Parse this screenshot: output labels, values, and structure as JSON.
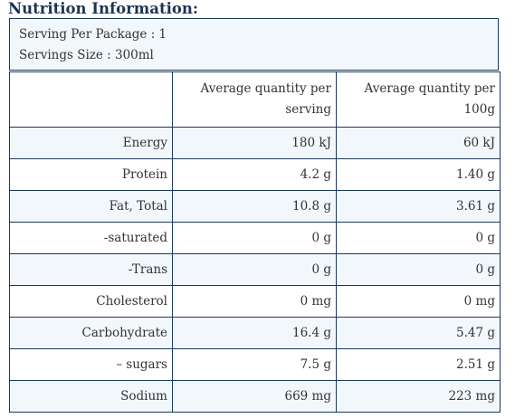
{
  "title": "Nutrition Information:",
  "serving": {
    "per_package": "Serving Per Package : 1",
    "size": "Servings Size : 300ml"
  },
  "table": {
    "headers": [
      "",
      "Average quantity per serving",
      "Average quantity per 100g"
    ],
    "rows": [
      {
        "name": "Energy",
        "per_serving": "180 kJ",
        "per_100g": "60 kJ"
      },
      {
        "name": "Protein",
        "per_serving": "4.2 g",
        "per_100g": "1.40 g"
      },
      {
        "name": "Fat, Total",
        "per_serving": "10.8 g",
        "per_100g": "3.61 g"
      },
      {
        "name": "-saturated",
        "per_serving": "0 g",
        "per_100g": "0 g"
      },
      {
        "name": "-Trans",
        "per_serving": "0 g",
        "per_100g": "0 g"
      },
      {
        "name": "Cholesterol",
        "per_serving": "0 mg",
        "per_100g": "0 mg"
      },
      {
        "name": "Carbohydrate",
        "per_serving": "16.4 g",
        "per_100g": "5.47 g"
      },
      {
        "name": "– sugars",
        "per_serving": "7.5 g",
        "per_100g": "2.51 g"
      },
      {
        "name": "Sodium",
        "per_serving": "669 mg",
        "per_100g": "223 mg"
      }
    ]
  },
  "colors": {
    "heading": "#1c3552",
    "border": "#1c3a5e",
    "stripe": "#f2f7fb"
  }
}
